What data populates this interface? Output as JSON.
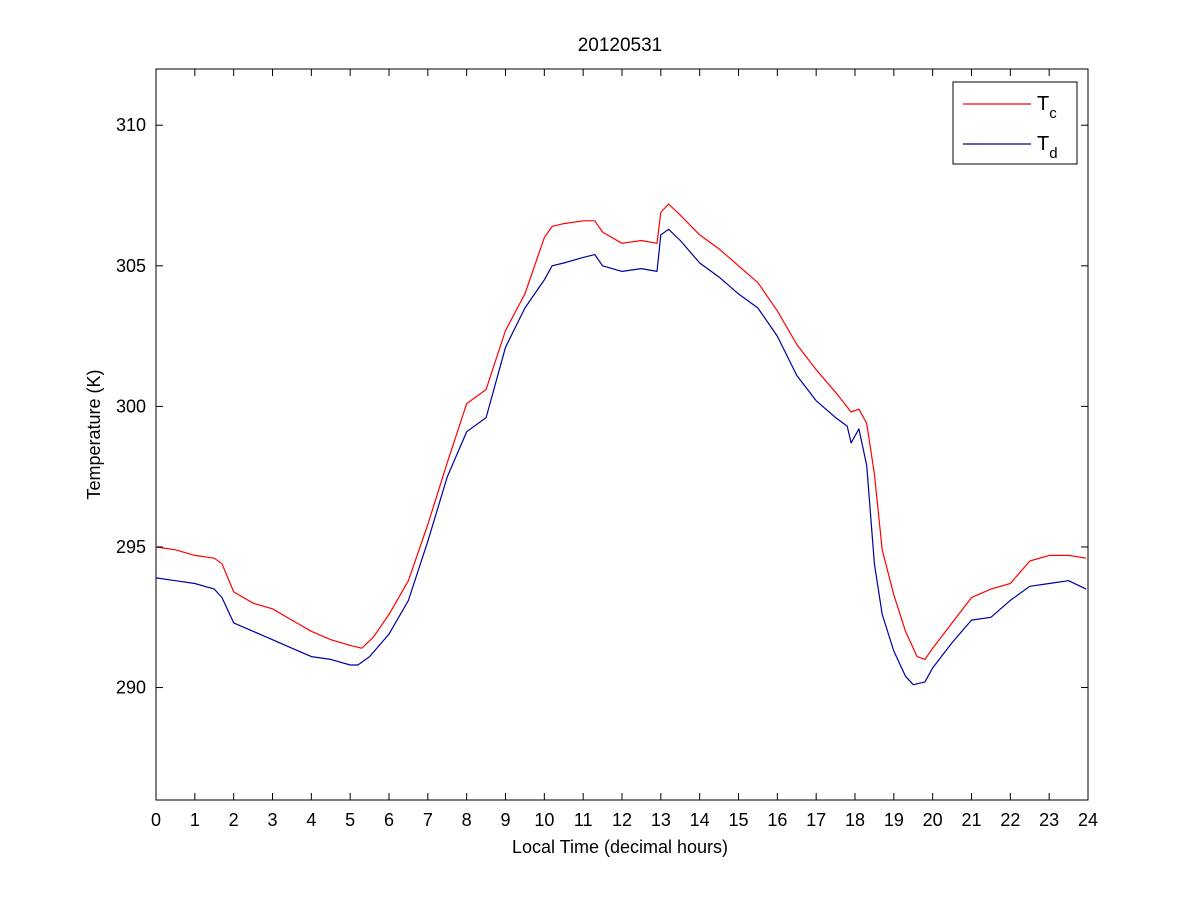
{
  "chart_data": {
    "type": "line",
    "title": "20120531",
    "xlabel": "Local Time (decimal hours)",
    "ylabel": "Temperature (K)",
    "xlim": [
      0,
      24
    ],
    "ylim": [
      286,
      312
    ],
    "xticks": [
      0,
      1,
      2,
      3,
      4,
      5,
      6,
      7,
      8,
      9,
      10,
      11,
      12,
      13,
      14,
      15,
      16,
      17,
      18,
      19,
      20,
      21,
      22,
      23,
      24
    ],
    "yticks": [
      290,
      295,
      300,
      305,
      310
    ],
    "grid": false,
    "legend_position": "top-right",
    "series": [
      {
        "name": "T",
        "name_subscript": "c",
        "color": "#ff0000",
        "x": [
          0,
          0.5,
          1,
          1.5,
          1.7,
          2,
          2.5,
          3,
          3.5,
          4,
          4.5,
          5,
          5.3,
          5.6,
          6,
          6.5,
          7,
          7.5,
          8,
          8.5,
          9,
          9.5,
          10,
          10.2,
          10.5,
          11,
          11.3,
          11.5,
          12,
          12.5,
          12.9,
          13,
          13.2,
          13.5,
          14,
          14.5,
          15,
          15.5,
          16,
          16.5,
          17,
          17.5,
          17.9,
          18.1,
          18.3,
          18.5,
          18.7,
          19,
          19.3,
          19.6,
          19.8,
          20,
          20.5,
          21,
          21.5,
          22,
          22.5,
          23,
          23.5,
          23.95
        ],
        "values": [
          295.0,
          294.9,
          294.7,
          294.6,
          294.4,
          293.4,
          293.0,
          292.8,
          292.4,
          292.0,
          291.7,
          291.5,
          291.4,
          291.8,
          292.6,
          293.8,
          295.8,
          298.0,
          300.1,
          300.6,
          302.7,
          304.0,
          306.0,
          306.4,
          306.5,
          306.6,
          306.6,
          306.2,
          305.8,
          305.9,
          305.8,
          306.9,
          307.2,
          306.8,
          306.1,
          305.6,
          305.0,
          304.4,
          303.4,
          302.2,
          301.3,
          300.5,
          299.8,
          299.9,
          299.4,
          297.6,
          294.9,
          293.3,
          292.0,
          291.1,
          291.0,
          291.4,
          292.3,
          293.2,
          293.5,
          293.7,
          294.5,
          294.7,
          294.7,
          294.6
        ]
      },
      {
        "name": "T",
        "name_subscript": "d",
        "color": "#0000a0",
        "x": [
          0,
          0.5,
          1,
          1.5,
          1.7,
          2,
          2.5,
          3,
          3.5,
          4,
          4.5,
          5,
          5.2,
          5.5,
          6,
          6.5,
          7,
          7.5,
          8,
          8.5,
          9,
          9.5,
          10,
          10.2,
          10.5,
          11,
          11.3,
          11.5,
          12,
          12.5,
          12.9,
          13,
          13.2,
          13.5,
          14,
          14.5,
          15,
          15.5,
          16,
          16.5,
          17,
          17.5,
          17.8,
          17.9,
          18.1,
          18.3,
          18.5,
          18.7,
          19,
          19.3,
          19.5,
          19.8,
          20,
          20.5,
          21,
          21.5,
          22,
          22.5,
          23,
          23.5,
          23.95
        ],
        "values": [
          293.9,
          293.8,
          293.7,
          293.5,
          293.2,
          292.3,
          292.0,
          291.7,
          291.4,
          291.1,
          291.0,
          290.8,
          290.8,
          291.1,
          291.9,
          293.1,
          295.2,
          297.5,
          299.1,
          299.6,
          302.1,
          303.5,
          304.5,
          305.0,
          305.1,
          305.3,
          305.4,
          305.0,
          304.8,
          304.9,
          304.8,
          306.1,
          306.3,
          305.9,
          305.1,
          304.6,
          304.0,
          303.5,
          302.5,
          301.1,
          300.2,
          299.6,
          299.3,
          298.7,
          299.2,
          297.9,
          294.4,
          292.6,
          291.3,
          290.4,
          290.1,
          290.2,
          290.7,
          291.6,
          292.4,
          292.5,
          293.1,
          293.6,
          293.7,
          293.8,
          293.5
        ]
      }
    ]
  }
}
